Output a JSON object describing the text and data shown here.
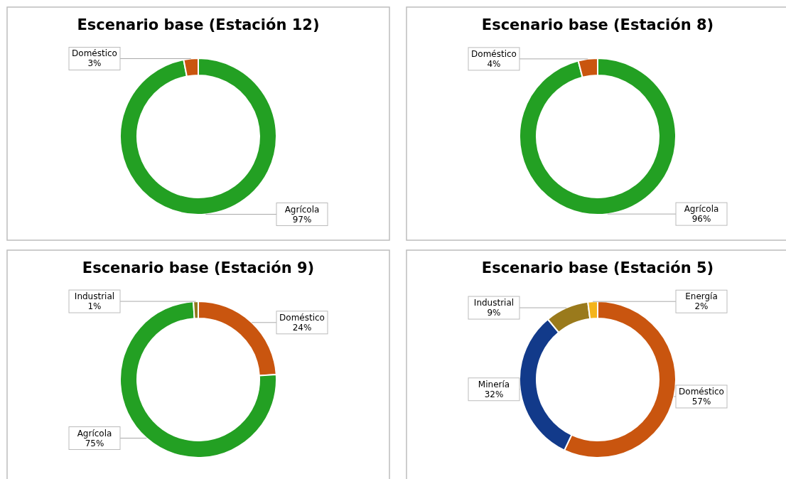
{
  "chart_data": [
    {
      "type": "donut",
      "title": "Escenario base (Estación 12)",
      "categories": [
        "Agrícola",
        "Doméstico"
      ],
      "values": [
        97,
        3
      ],
      "value_labels": [
        "97%",
        "3%"
      ],
      "colors": [
        "#23a023",
        "#c9550f"
      ]
    },
    {
      "type": "donut",
      "title": "Escenario base (Estación 8)",
      "categories": [
        "Agrícola",
        "Doméstico"
      ],
      "values": [
        96,
        4
      ],
      "value_labels": [
        "96%",
        "4%"
      ],
      "colors": [
        "#23a023",
        "#c9550f"
      ]
    },
    {
      "type": "donut",
      "title": "Escenario base (Estación 9)",
      "categories": [
        "Doméstico",
        "Agrícola",
        "Industrial"
      ],
      "values": [
        24,
        75,
        1
      ],
      "value_labels": [
        "24%",
        "75%",
        "1%"
      ],
      "colors": [
        "#c9550f",
        "#23a023",
        "#8f7a1e"
      ]
    },
    {
      "type": "donut",
      "title": "Escenario base (Estación 5)",
      "categories": [
        "Doméstico",
        "Minería",
        "Industrial",
        "Energía"
      ],
      "values": [
        57,
        32,
        9,
        2
      ],
      "value_labels": [
        "57%",
        "32%",
        "9%",
        "2%"
      ],
      "colors": [
        "#c9550f",
        "#123a8a",
        "#9a7a1c",
        "#f4b41a"
      ]
    }
  ]
}
